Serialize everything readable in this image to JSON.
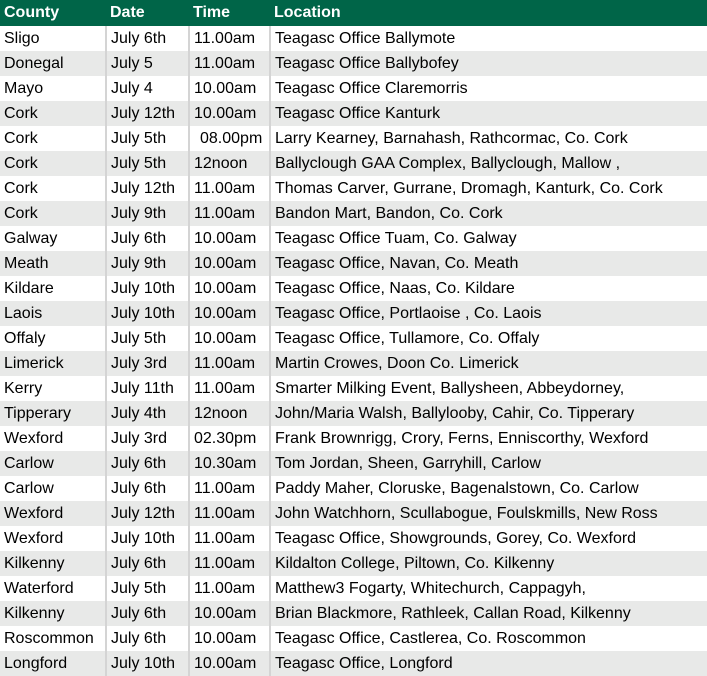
{
  "colors": {
    "header_bg": "#006548",
    "header_text": "#ffffff",
    "alt_row": "#e8e9e8"
  },
  "table": {
    "headers": [
      "County",
      "Date",
      "Time",
      "Location"
    ],
    "rows": [
      [
        "Sligo",
        "July 6th",
        "11.00am",
        "Teagasc Office Ballymote"
      ],
      [
        "Donegal",
        "July 5",
        "11.00am",
        "Teagasc Office Ballybofey"
      ],
      [
        "Mayo",
        "July 4",
        "10.00am",
        "Teagasc Office Claremorris"
      ],
      [
        "Cork",
        "July 12th",
        "10.00am",
        "Teagasc Office Kanturk"
      ],
      [
        "Cork",
        "July 5th",
        " 08.00pm",
        "Larry Kearney, Barnahash, Rathcormac, Co. Cork"
      ],
      [
        "Cork",
        "July 5th",
        "12noon",
        "Ballyclough GAA Complex, Ballyclough, Mallow ,"
      ],
      [
        "Cork",
        "July 12th",
        "11.00am",
        "Thomas Carver, Gurrane, Dromagh, Kanturk, Co. Cork"
      ],
      [
        "Cork",
        "July 9th",
        "11.00am",
        "Bandon Mart, Bandon, Co. Cork"
      ],
      [
        "Galway",
        "July 6th",
        "10.00am",
        "Teagasc Office Tuam, Co. Galway"
      ],
      [
        "Meath",
        "July 9th",
        "10.00am",
        "Teagasc Office, Navan, Co. Meath"
      ],
      [
        "Kildare",
        "July 10th",
        "10.00am",
        "Teagasc Office, Naas, Co. Kildare"
      ],
      [
        "Laois",
        "July 10th",
        "10.00am",
        "Teagasc Office, Portlaoise , Co. Laois"
      ],
      [
        "Offaly",
        "July 5th",
        "10.00am",
        "Teagasc Office, Tullamore, Co. Offaly"
      ],
      [
        "Limerick",
        "July 3rd",
        "11.00am",
        "Martin Crowes, Doon Co. Limerick"
      ],
      [
        "Kerry",
        "July 11th",
        "11.00am",
        "Smarter Milking Event, Ballysheen, Abbeydorney,"
      ],
      [
        "Tipperary",
        "July 4th",
        "12noon",
        "John/Maria Walsh, Ballylooby, Cahir, Co. Tipperary"
      ],
      [
        "Wexford",
        "July 3rd",
        "02.30pm",
        "Frank Brownrigg, Crory, Ferns, Enniscorthy, Wexford"
      ],
      [
        "Carlow",
        "July 6th",
        "10.30am",
        "Tom Jordan, Sheen, Garryhill, Carlow"
      ],
      [
        "Carlow",
        "July 6th",
        "11.00am",
        "Paddy Maher, Cloruske, Bagenalstown, Co. Carlow"
      ],
      [
        "Wexford",
        "July 12th",
        "11.00am",
        "John Watchhorn, Scullabogue, Foulskmills, New Ross"
      ],
      [
        "Wexford",
        "July 10th",
        "11.00am",
        "Teagasc Office, Showgrounds, Gorey, Co. Wexford"
      ],
      [
        "Kilkenny",
        "July 6th",
        "11.00am",
        "Kildalton College, Piltown, Co. Kilkenny"
      ],
      [
        "Waterford",
        "July 5th",
        "11.00am",
        "Matthew3 Fogarty, Whitechurch, Cappagyh,"
      ],
      [
        "Kilkenny",
        "July 6th",
        "10.00am",
        "Brian Blackmore, Rathleek, Callan Road, Kilkenny"
      ],
      [
        "Roscommon",
        "July 6th",
        "10.00am",
        "Teagasc Office, Castlerea, Co. Roscommon"
      ],
      [
        "Longford",
        "July 10th",
        "10.00am",
        "Teagasc Office, Longford"
      ]
    ]
  }
}
